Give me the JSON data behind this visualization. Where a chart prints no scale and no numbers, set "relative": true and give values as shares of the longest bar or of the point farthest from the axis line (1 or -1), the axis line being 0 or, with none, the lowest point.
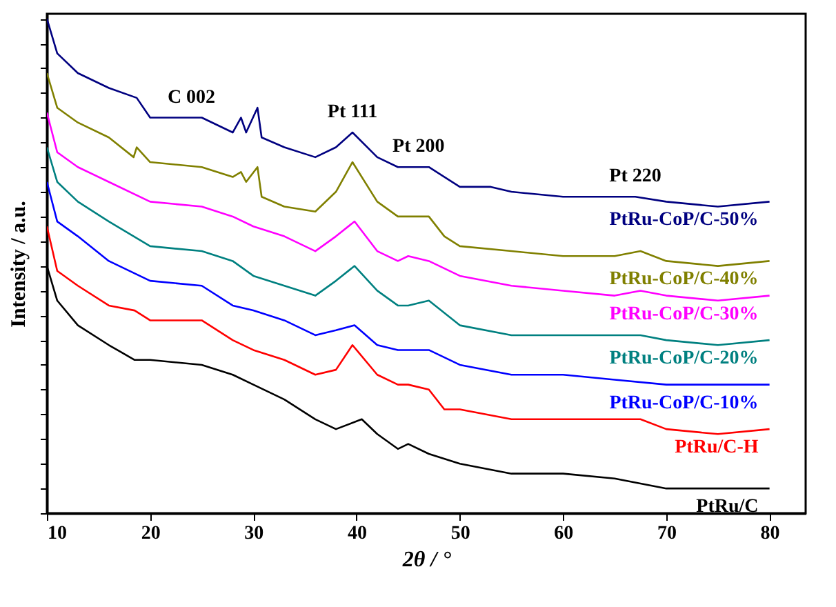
{
  "chart_data": {
    "type": "line",
    "relative": true,
    "xlabel": "2θ / °",
    "ylabel": "Intensity / a.u.",
    "xlim": [
      10,
      83.5
    ],
    "xticks": [
      10,
      20,
      30,
      40,
      50,
      60,
      70,
      80
    ],
    "tick_labels": "x",
    "grid": false,
    "legend": false,
    "marker": "none",
    "line_style": "solid",
    "annotations": [
      {
        "text": "C 002",
        "x": 24,
        "y": 0.8
      },
      {
        "text": "Pt 111",
        "x": 39.6,
        "y": 0.77
      },
      {
        "text": "Pt 200",
        "x": 46,
        "y": 0.7
      },
      {
        "text": "Pt 220",
        "x": 67,
        "y": 0.64
      }
    ],
    "series": [
      {
        "name": "PtRu-CoP/C-50%",
        "color": "#000080",
        "x": [
          10,
          11,
          13,
          16,
          18.7,
          20,
          25,
          28,
          28.8,
          29.3,
          30.4,
          30.8,
          33,
          36,
          38,
          39.6,
          42,
          44,
          45,
          47,
          50,
          53,
          55,
          60,
          65,
          67,
          70,
          75,
          80
        ],
        "values": [
          1.0,
          0.93,
          0.89,
          0.86,
          0.84,
          0.8,
          0.8,
          0.77,
          0.8,
          0.77,
          0.82,
          0.76,
          0.74,
          0.72,
          0.74,
          0.77,
          0.72,
          0.7,
          0.7,
          0.7,
          0.66,
          0.66,
          0.65,
          0.64,
          0.64,
          0.64,
          0.63,
          0.62,
          0.63
        ]
      },
      {
        "name": "PtRu-CoP/C-40%",
        "color": "#808000",
        "x": [
          10,
          11,
          13,
          16,
          18.4,
          18.7,
          20,
          25,
          28,
          28.8,
          29.3,
          30.4,
          30.8,
          33,
          36,
          38,
          39.6,
          42,
          44,
          45,
          47,
          48.5,
          50,
          55,
          60,
          65,
          67.5,
          70,
          75,
          80
        ],
        "values": [
          0.89,
          0.82,
          0.79,
          0.76,
          0.72,
          0.74,
          0.71,
          0.7,
          0.68,
          0.69,
          0.67,
          0.7,
          0.64,
          0.62,
          0.61,
          0.65,
          0.71,
          0.63,
          0.6,
          0.6,
          0.6,
          0.56,
          0.54,
          0.53,
          0.52,
          0.52,
          0.53,
          0.51,
          0.5,
          0.51
        ]
      },
      {
        "name": "PtRu-CoP/C-30%",
        "color": "#ff00ff",
        "x": [
          10,
          11,
          13,
          16,
          20,
          25,
          28,
          30,
          33,
          36,
          38,
          39.8,
          42,
          44,
          45,
          47,
          50,
          55,
          60,
          65,
          67.5,
          70,
          75,
          80
        ],
        "values": [
          0.81,
          0.73,
          0.7,
          0.67,
          0.63,
          0.62,
          0.6,
          0.58,
          0.56,
          0.53,
          0.56,
          0.59,
          0.53,
          0.51,
          0.52,
          0.51,
          0.48,
          0.46,
          0.45,
          0.44,
          0.45,
          0.44,
          0.43,
          0.44
        ]
      },
      {
        "name": "PtRu-CoP/C-20%",
        "color": "#008080",
        "x": [
          10,
          11,
          13,
          16,
          20,
          25,
          28,
          30,
          33,
          36,
          38,
          39.8,
          42,
          44,
          45,
          47,
          50,
          55,
          60,
          65,
          67.5,
          70,
          75,
          80
        ],
        "values": [
          0.74,
          0.67,
          0.63,
          0.59,
          0.54,
          0.53,
          0.51,
          0.48,
          0.46,
          0.44,
          0.47,
          0.5,
          0.45,
          0.42,
          0.42,
          0.43,
          0.38,
          0.36,
          0.36,
          0.36,
          0.36,
          0.35,
          0.34,
          0.35
        ]
      },
      {
        "name": "PtRu-CoP/C-10%",
        "color": "#0000ff",
        "x": [
          10,
          11,
          13,
          16,
          20,
          25,
          28,
          30,
          33,
          36,
          38,
          39.8,
          42,
          44,
          45,
          47,
          50,
          55,
          60,
          65,
          70,
          75,
          80
        ],
        "values": [
          0.67,
          0.59,
          0.56,
          0.51,
          0.47,
          0.46,
          0.42,
          0.41,
          0.39,
          0.36,
          0.37,
          0.38,
          0.34,
          0.33,
          0.33,
          0.33,
          0.3,
          0.28,
          0.28,
          0.27,
          0.26,
          0.26,
          0.26
        ]
      },
      {
        "name": "PtRu/C-H",
        "color": "#ff0000",
        "x": [
          10,
          11,
          13,
          16,
          18.5,
          20,
          25,
          28,
          30,
          33,
          36,
          38,
          39.6,
          42,
          44,
          45,
          47,
          48.5,
          50,
          55,
          60,
          65,
          67.5,
          70,
          75,
          80
        ],
        "values": [
          0.58,
          0.49,
          0.46,
          0.42,
          0.41,
          0.39,
          0.39,
          0.35,
          0.33,
          0.31,
          0.28,
          0.29,
          0.34,
          0.28,
          0.26,
          0.26,
          0.25,
          0.21,
          0.21,
          0.19,
          0.19,
          0.19,
          0.19,
          0.17,
          0.16,
          0.17
        ]
      },
      {
        "name": "PtRu/C",
        "color": "#000000",
        "x": [
          10,
          11,
          13,
          16,
          18.5,
          20,
          25,
          28,
          30,
          33,
          36,
          38,
          40.5,
          42,
          44,
          45,
          47,
          50,
          55,
          60,
          65,
          70,
          75,
          80
        ],
        "values": [
          0.5,
          0.43,
          0.38,
          0.34,
          0.31,
          0.31,
          0.3,
          0.28,
          0.26,
          0.23,
          0.19,
          0.17,
          0.19,
          0.16,
          0.13,
          0.14,
          0.12,
          0.1,
          0.08,
          0.08,
          0.07,
          0.05,
          0.05,
          0.05
        ]
      }
    ]
  }
}
